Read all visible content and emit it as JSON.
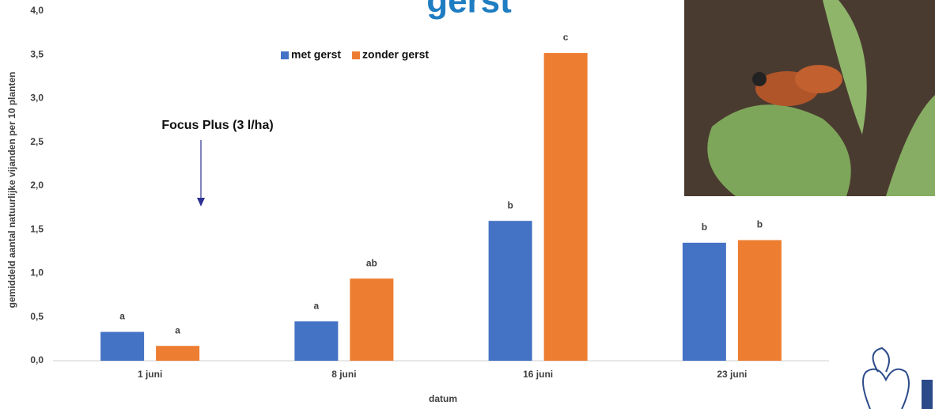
{
  "chart_data": {
    "type": "bar",
    "title": "gerst",
    "x_label": "datum",
    "y_label": "gemiddeld aantal natuurlijke vijanden per 10 planten",
    "annotation": "Focus Plus (3 l/ha)",
    "categories": [
      "1 juni",
      "8 juni",
      "16 juni",
      "23 juni"
    ],
    "series": [
      {
        "name": "met gerst",
        "color": "#4472c4",
        "values": [
          0.33,
          0.45,
          1.6,
          1.35
        ],
        "letters": [
          "a",
          "a",
          "b",
          "b"
        ]
      },
      {
        "name": "zonder gerst",
        "color": "#ed7d31",
        "values": [
          0.17,
          0.94,
          3.52,
          1.38
        ],
        "letters": [
          "a",
          "ab",
          "c",
          "b"
        ]
      }
    ],
    "ylim": [
      0,
      4
    ],
    "yticks": [
      {
        "value": 0,
        "label": "0,0"
      },
      {
        "value": 0.5,
        "label": "0,5"
      },
      {
        "value": 1,
        "label": "1,0"
      },
      {
        "value": 1.5,
        "label": "1,5"
      },
      {
        "value": 2,
        "label": "2,0"
      },
      {
        "value": 2.5,
        "label": "2,5"
      },
      {
        "value": 3,
        "label": "3,0"
      },
      {
        "value": 3.5,
        "label": "3,5"
      },
      {
        "value": 4,
        "label": "4,0"
      }
    ],
    "grid": false,
    "legend": "top"
  }
}
